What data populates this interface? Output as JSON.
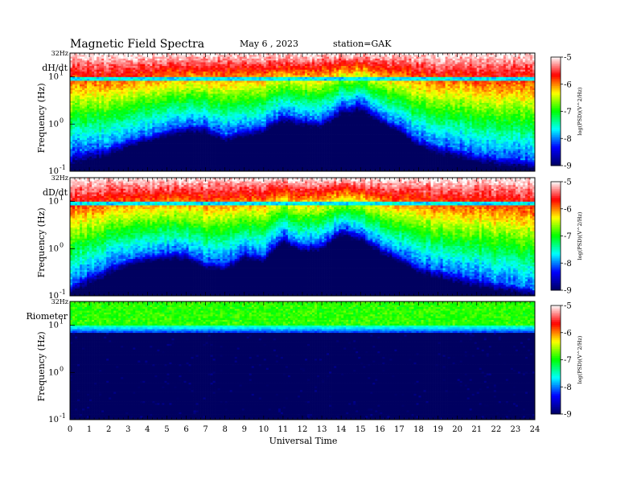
{
  "header": {
    "title": "Magnetic  Field  Spectra",
    "date": "May 6  , 2023",
    "station": "station=GAK"
  },
  "chart_data": [
    {
      "type": "heatmap",
      "panel_label": "dH/dt",
      "ylabel": "Frequency  (Hz)",
      "yscale": "log",
      "ylim": [
        0.1,
        32
      ],
      "y_top_label": "32Hz",
      "y_ticks": [
        "10",
        "10",
        "10"
      ],
      "y_tick_exps": [
        "1",
        "0",
        "-1"
      ],
      "y_tick_values": [
        10,
        1,
        0.1
      ],
      "xlim": [
        0,
        24
      ],
      "colorbar": {
        "label": "log(PSD)(V^2/Hz)",
        "range": [
          -9,
          -5
        ],
        "ticks": [
          "-5",
          "-6",
          "-7",
          "-8",
          "-9"
        ],
        "colormap": [
          "#000060",
          "#0000ff",
          "#00ffff",
          "#00ff00",
          "#ffff00",
          "#ff0000",
          "#ffffff"
        ]
      },
      "upper_edge_log10_hz": [
        -0.6,
        -0.5,
        -0.45,
        -0.3,
        -0.2,
        -0.1,
        0.0,
        0.0,
        -0.2,
        -0.1,
        0.0,
        0.25,
        0.15,
        0.1,
        0.4,
        0.5,
        0.2,
        0.0,
        -0.3,
        -0.4,
        -0.5,
        -0.6,
        -0.65,
        -0.7,
        -0.8
      ],
      "lower_edge_log10_hz": [
        -1.0,
        -0.85,
        -0.75,
        -0.55,
        -0.45,
        -0.35,
        -0.25,
        -0.25,
        -0.45,
        -0.35,
        -0.25,
        -0.05,
        -0.1,
        -0.15,
        0.1,
        0.2,
        -0.05,
        -0.25,
        -0.55,
        -0.7,
        -0.8,
        -0.9,
        -0.95,
        -1.0,
        -1.0
      ],
      "note_log10_hz": 0.95
    },
    {
      "type": "heatmap",
      "panel_label": "dD/dt",
      "ylabel": "Frequency  (Hz)",
      "yscale": "log",
      "ylim": [
        0.1,
        32
      ],
      "y_top_label": "32Hz",
      "y_ticks": [
        "10",
        "10",
        "10"
      ],
      "y_tick_exps": [
        "1",
        "0",
        "-1"
      ],
      "y_tick_values": [
        10,
        1,
        0.1
      ],
      "xlim": [
        0,
        24
      ],
      "colorbar": {
        "label": "log(PSD)(V^2/Hz)",
        "range": [
          -9,
          -5
        ],
        "ticks": [
          "-5",
          "-6",
          "-7",
          "-8",
          "-9"
        ],
        "colormap": [
          "#000060",
          "#0000ff",
          "#00ffff",
          "#00ff00",
          "#ffff00",
          "#ff0000",
          "#ffffff"
        ]
      },
      "upper_edge_log10_hz": [
        -0.75,
        -0.5,
        -0.35,
        -0.2,
        -0.1,
        -0.05,
        -0.05,
        -0.25,
        -0.3,
        -0.05,
        -0.1,
        0.3,
        0.1,
        0.15,
        0.45,
        0.35,
        0.1,
        -0.1,
        -0.35,
        -0.4,
        -0.5,
        -0.6,
        -0.7,
        -0.75,
        -0.85
      ],
      "lower_edge_log10_hz": [
        -1.0,
        -0.85,
        -0.65,
        -0.45,
        -0.35,
        -0.3,
        -0.3,
        -0.5,
        -0.55,
        -0.3,
        -0.35,
        0.05,
        -0.15,
        -0.1,
        0.2,
        0.1,
        -0.15,
        -0.35,
        -0.6,
        -0.7,
        -0.8,
        -0.9,
        -0.95,
        -1.0,
        -1.0
      ],
      "note_log10_hz": 0.95
    },
    {
      "type": "heatmap",
      "panel_label": "Riometer",
      "ylabel": "Frequency  (Hz)",
      "yscale": "log",
      "ylim": [
        0.1,
        32
      ],
      "y_top_label": "32Hz",
      "y_ticks": [
        "10",
        "10",
        "10"
      ],
      "y_tick_exps": [
        "1",
        "0",
        "-1"
      ],
      "y_tick_values": [
        10,
        1,
        0.1
      ],
      "xlim": [
        0,
        24
      ],
      "colorbar": {
        "label": "log(PSD)(V^2/Hz)",
        "range": [
          -9,
          -5
        ],
        "ticks": [
          "-5",
          "-6",
          "-7",
          "-8",
          "-9"
        ],
        "colormap": [
          "#000060",
          "#0000ff",
          "#00ffff",
          "#00ff00",
          "#ffff00",
          "#ff0000",
          "#ffffff"
        ]
      },
      "upper_edge_log10_hz": [
        1.0,
        1.0,
        1.0,
        1.0,
        1.0,
        1.0,
        1.0,
        1.0,
        1.0,
        1.0,
        1.0,
        1.0,
        1.0,
        1.0,
        1.0,
        1.0,
        1.0,
        1.0,
        1.0,
        1.0,
        1.0,
        1.0,
        1.0,
        1.0,
        1.0
      ],
      "lower_edge_log10_hz": [
        0.85,
        0.85,
        0.85,
        0.85,
        0.85,
        0.85,
        0.85,
        0.85,
        0.85,
        0.85,
        0.85,
        0.85,
        0.85,
        0.85,
        0.85,
        0.85,
        0.85,
        0.85,
        0.85,
        0.85,
        0.85,
        0.85,
        0.85,
        0.85,
        0.85
      ]
    }
  ],
  "xaxis": {
    "label": "Universal  Time",
    "ticks": [
      "0",
      "1",
      "2",
      "3",
      "4",
      "5",
      "6",
      "7",
      "8",
      "9",
      "10",
      "11",
      "12",
      "13",
      "14",
      "15",
      "16",
      "17",
      "18",
      "19",
      "20",
      "21",
      "22",
      "23",
      "24"
    ]
  }
}
